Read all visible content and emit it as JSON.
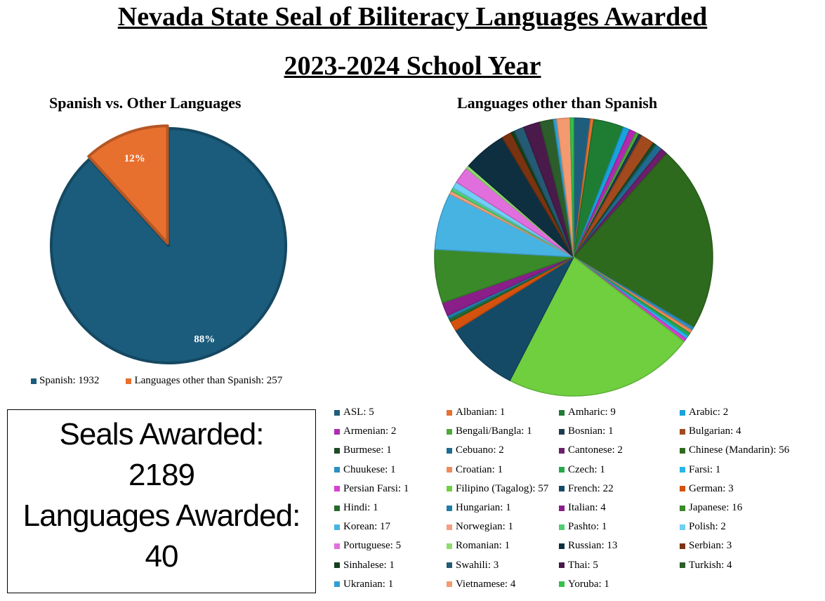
{
  "title": "Nevada State Seal of Biliteracy Languages Awarded",
  "subtitle": "2023-2024 School Year",
  "summary": {
    "seals_label": "Seals Awarded:",
    "seals_value": "2189",
    "languages_label": "Languages Awarded:",
    "languages_value": "40"
  },
  "chart_data": [
    {
      "type": "pie",
      "title": "Spanish vs. Other Languages",
      "legend": "bottom",
      "slices": [
        {
          "label": "Spanish",
          "value": 1932,
          "percent_label": "88%",
          "color": "#1b5c7c",
          "legend_text": "Spanish: 1932"
        },
        {
          "label": "Languages other than Spanish",
          "value": 257,
          "percent_label": "12%",
          "color": "#e8702f",
          "legend_text": "Languages other than Spanish: 257"
        }
      ]
    },
    {
      "type": "pie",
      "title": "Languages other than Spanish",
      "legend": "bottom",
      "slices": [
        {
          "label": "ASL",
          "value": 5,
          "color": "#1f5d7c",
          "legend_text": "ASL: 5"
        },
        {
          "label": "Albanian",
          "value": 1,
          "color": "#e8702f",
          "legend_text": "Albanian: 1"
        },
        {
          "label": "Amharic",
          "value": 9,
          "color": "#1e7d33",
          "legend_text": "Amharic: 9"
        },
        {
          "label": "Arabic",
          "value": 2,
          "color": "#1aa2dc",
          "legend_text": "Arabic: 2"
        },
        {
          "label": "Armenian",
          "value": 2,
          "color": "#b02bb0",
          "legend_text": "Armenian: 2"
        },
        {
          "label": "Bengali/Bangla",
          "value": 1,
          "color": "#4ea83b",
          "legend_text": "Bengali/Bangla: 1"
        },
        {
          "label": "Bosnian",
          "value": 1,
          "color": "#1d3d4f",
          "legend_text": "Bosnian: 1"
        },
        {
          "label": "Bulgarian",
          "value": 4,
          "color": "#a24a1e",
          "legend_text": "Bulgarian: 4"
        },
        {
          "label": "Burmese",
          "value": 1,
          "color": "#1c4a22",
          "legend_text": "Burmese: 1"
        },
        {
          "label": "Cebuano",
          "value": 2,
          "color": "#1f6b8f",
          "legend_text": "Cebuano: 2"
        },
        {
          "label": "Cantonese",
          "value": 2,
          "color": "#6b1f6b",
          "legend_text": "Cantonese: 2"
        },
        {
          "label": "Chinese (Mandarin)",
          "value": 56,
          "color": "#2e6a1e",
          "legend_text": "Chinese (Mandarin): 56"
        },
        {
          "label": "Chuukese",
          "value": 1,
          "color": "#2d8fc0",
          "legend_text": "Chuukese: 1"
        },
        {
          "label": "Croatian",
          "value": 1,
          "color": "#f08a5a",
          "legend_text": "Croatian: 1"
        },
        {
          "label": "Czech",
          "value": 1,
          "color": "#27a84a",
          "legend_text": "Czech: 1"
        },
        {
          "label": "Farsi",
          "value": 1,
          "color": "#27b5ea",
          "legend_text": "Farsi: 1"
        },
        {
          "label": "Persian Farsi",
          "value": 1,
          "color": "#d93fd1",
          "legend_text": "Persian Farsi: 1"
        },
        {
          "label": "Filipino (Tagalog)",
          "value": 57,
          "color": "#6fcf3f",
          "legend_text": "Filipino (Tagalog): 57"
        },
        {
          "label": "French",
          "value": 22,
          "color": "#154a66",
          "legend_text": "French: 22"
        },
        {
          "label": "German",
          "value": 3,
          "color": "#d4520e",
          "legend_text": "German: 3"
        },
        {
          "label": "Hindi",
          "value": 1,
          "color": "#25692b",
          "legend_text": "Hindi: 1"
        },
        {
          "label": "Hungarian",
          "value": 1,
          "color": "#1f7ea8",
          "legend_text": "Hungarian: 1"
        },
        {
          "label": "Italian",
          "value": 4,
          "color": "#8a1f8a",
          "legend_text": "Italian: 4"
        },
        {
          "label": "Japanese",
          "value": 16,
          "color": "#3a8a2a",
          "legend_text": "Japanese: 16"
        },
        {
          "label": "Korean",
          "value": 17,
          "color": "#47b3e3",
          "legend_text": "Korean: 17"
        },
        {
          "label": "Norwegian",
          "value": 1,
          "color": "#f4a080",
          "legend_text": "Norwegian: 1"
        },
        {
          "label": "Pashto",
          "value": 1,
          "color": "#4fcf6f",
          "legend_text": "Pashto: 1"
        },
        {
          "label": "Polish",
          "value": 2,
          "color": "#6fcff5",
          "legend_text": "Polish: 2"
        },
        {
          "label": "Portuguese",
          "value": 5,
          "color": "#e06fdd",
          "legend_text": "Portuguese: 5"
        },
        {
          "label": "Romanian",
          "value": 1,
          "color": "#8fdb70",
          "legend_text": "Romanian: 1"
        },
        {
          "label": "Russian",
          "value": 13,
          "color": "#0e2f40",
          "legend_text": "Russian: 13"
        },
        {
          "label": "Serbian",
          "value": 3,
          "color": "#7a3310",
          "legend_text": "Serbian: 3"
        },
        {
          "label": "Sinhalese",
          "value": 1,
          "color": "#163f1b",
          "legend_text": "Sinhalese: 1"
        },
        {
          "label": "Swahili",
          "value": 3,
          "color": "#245a73",
          "legend_text": "Swahili: 3"
        },
        {
          "label": "Thai",
          "value": 5,
          "color": "#4a1a4a",
          "legend_text": "Thai: 5"
        },
        {
          "label": "Turkish",
          "value": 4,
          "color": "#2b5e2b",
          "legend_text": "Turkish: 4"
        },
        {
          "label": "Ukranian",
          "value": 1,
          "color": "#2d9fd4",
          "legend_text": "Ukranian: 1"
        },
        {
          "label": "Vietnamese",
          "value": 4,
          "color": "#f49a70",
          "legend_text": "Vietnamese: 4"
        },
        {
          "label": "Yoruba",
          "value": 1,
          "color": "#35c24a",
          "legend_text": "Yoruba: 1"
        }
      ]
    }
  ]
}
